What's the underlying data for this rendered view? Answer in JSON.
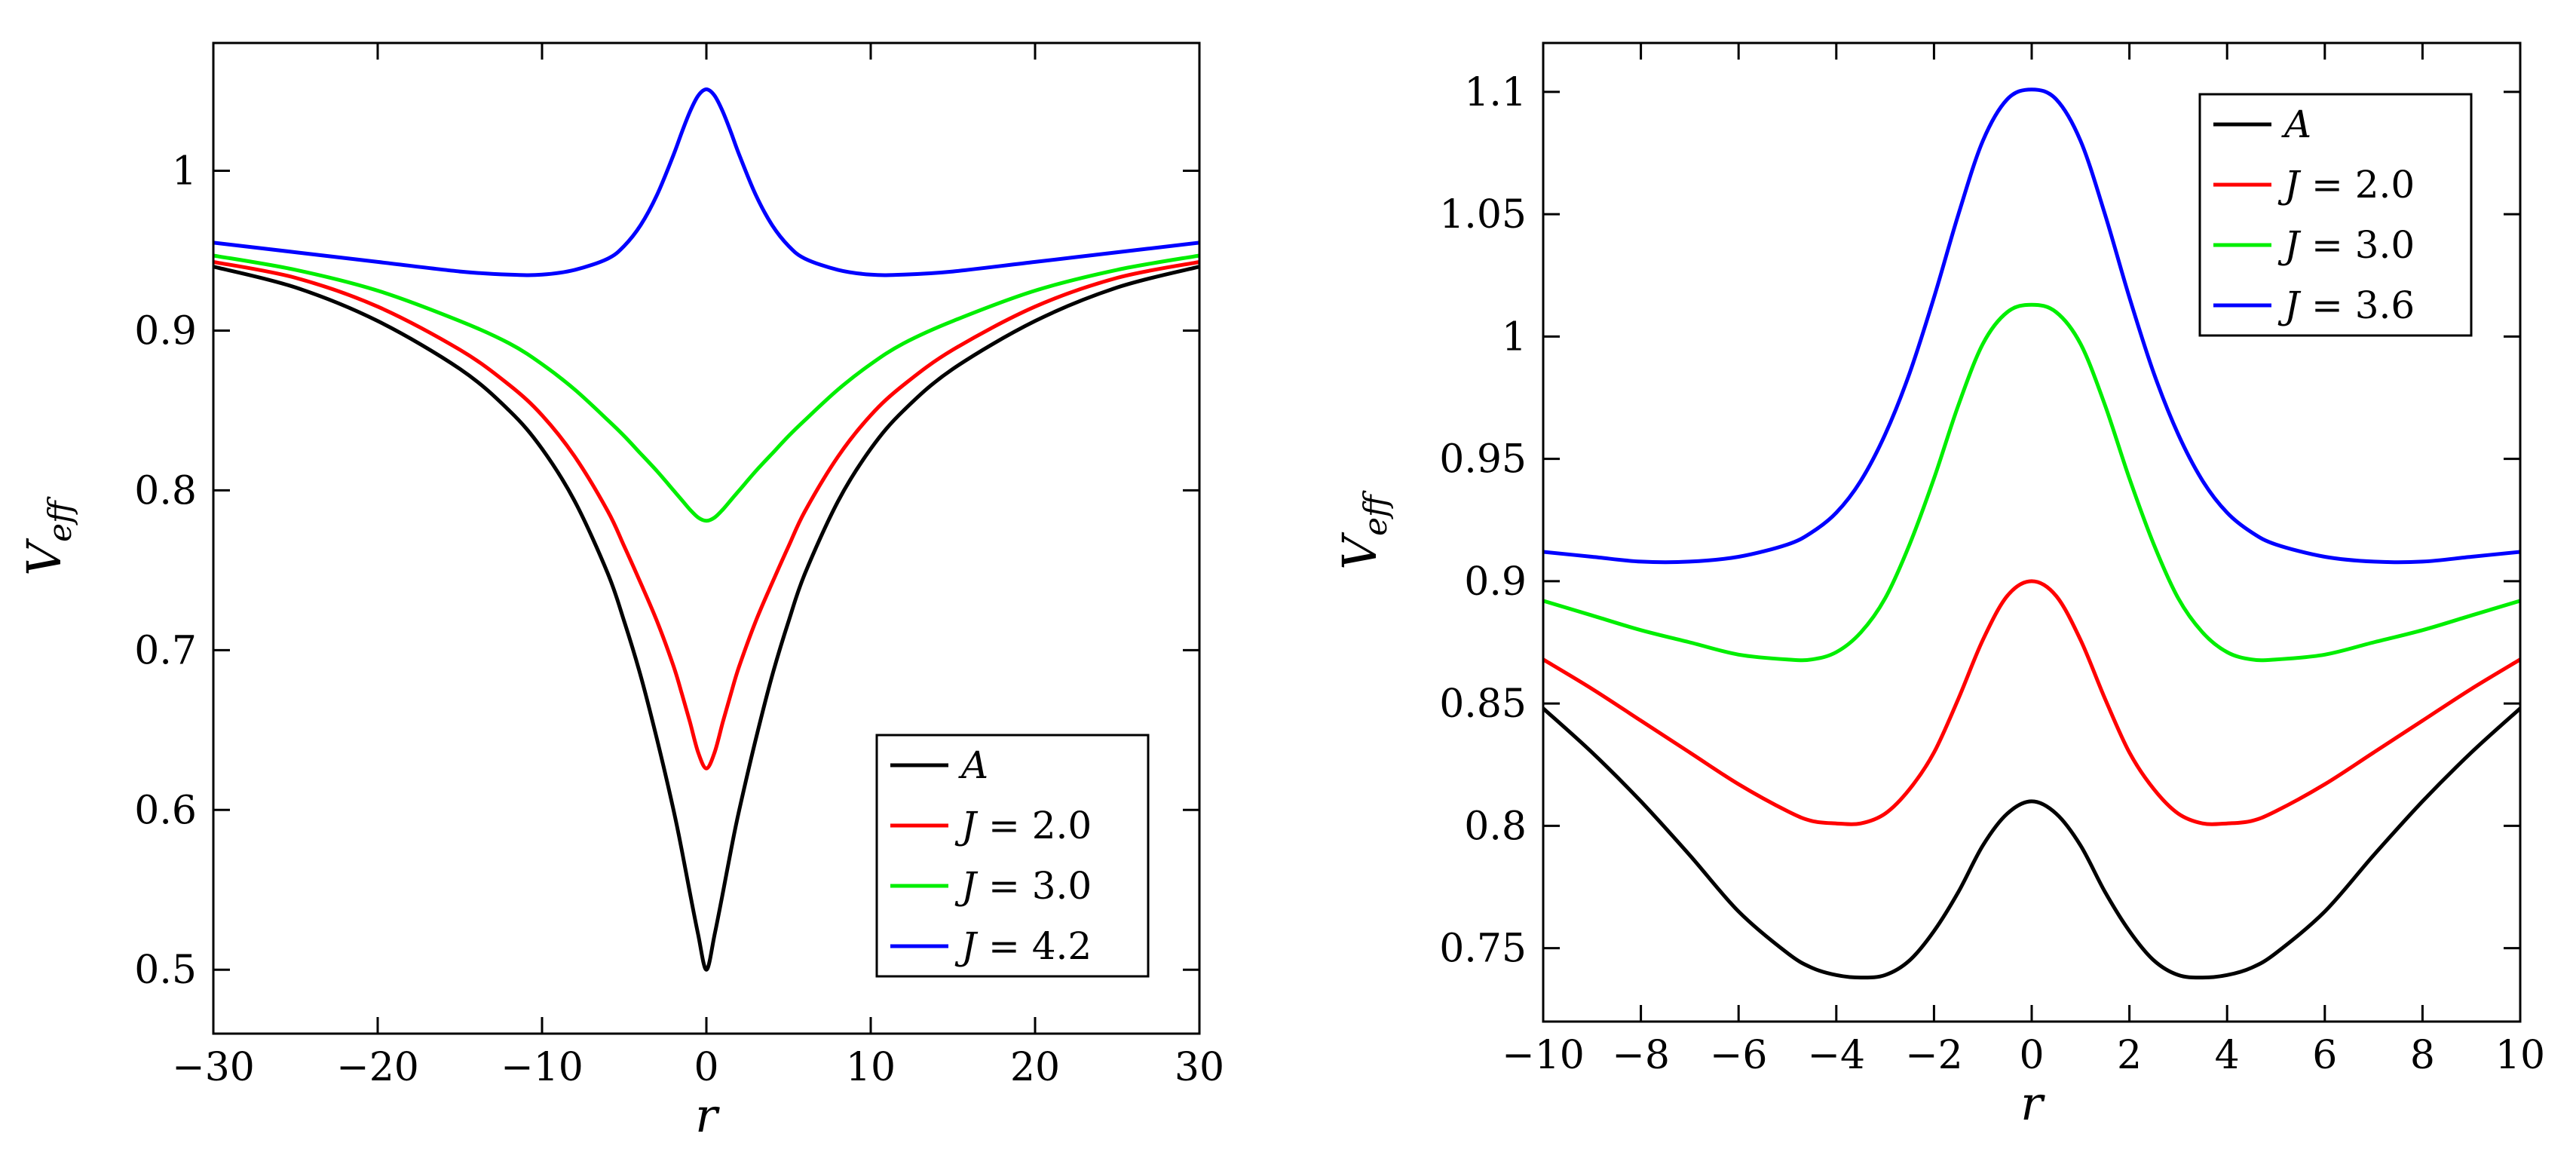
{
  "chart_data": [
    {
      "type": "line",
      "title": "",
      "xlabel": "r",
      "ylabel_main": "V",
      "ylabel_sub": "eff",
      "xlim": [
        -30,
        30
      ],
      "ylim": [
        0.46,
        1.08
      ],
      "xticks": [
        -30,
        -20,
        -10,
        0,
        10,
        20,
        30
      ],
      "xtick_labels": [
        "−30",
        "−20",
        "−10",
        "0",
        "10",
        "20",
        "30"
      ],
      "yticks": [
        0.5,
        0.6,
        0.7,
        0.8,
        0.9,
        1.0
      ],
      "ytick_labels": [
        "0.5",
        "0.6",
        "0.7",
        "0.8",
        "0.9",
        "1"
      ],
      "legend_position": "bottom-right",
      "x": [
        -30,
        -25,
        -20,
        -15,
        -12,
        -10,
        -8,
        -6,
        -5,
        -4,
        -3,
        -2,
        -1.5,
        -1,
        -0.5,
        0,
        0.5,
        1,
        1.5,
        2,
        3,
        4,
        5,
        6,
        8,
        10,
        12,
        15,
        20,
        25,
        30
      ],
      "series": [
        {
          "name_var": "A",
          "name_rest": "",
          "color": "#000000",
          "values": [
            0.94,
            0.927,
            0.906,
            0.876,
            0.85,
            0.826,
            0.793,
            0.748,
            0.718,
            0.684,
            0.644,
            0.6,
            0.575,
            0.548,
            0.522,
            0.5,
            0.522,
            0.548,
            0.575,
            0.6,
            0.644,
            0.684,
            0.718,
            0.748,
            0.793,
            0.826,
            0.85,
            0.876,
            0.906,
            0.927,
            0.94
          ]
        },
        {
          "name_var": "J",
          "name_rest": " = 2.0",
          "color": "#ff0000",
          "values": [
            0.943,
            0.933,
            0.915,
            0.888,
            0.866,
            0.847,
            0.821,
            0.787,
            0.765,
            0.742,
            0.718,
            0.69,
            0.673,
            0.655,
            0.636,
            0.626,
            0.636,
            0.655,
            0.673,
            0.69,
            0.718,
            0.742,
            0.765,
            0.787,
            0.821,
            0.847,
            0.866,
            0.888,
            0.915,
            0.933,
            0.943
          ]
        },
        {
          "name_var": "J",
          "name_rest": " = 3.0",
          "color": "#00ee00",
          "values": [
            0.947,
            0.938,
            0.925,
            0.906,
            0.892,
            0.879,
            0.863,
            0.844,
            0.834,
            0.823,
            0.812,
            0.8,
            0.794,
            0.788,
            0.783,
            0.781,
            0.783,
            0.788,
            0.794,
            0.8,
            0.812,
            0.823,
            0.834,
            0.844,
            0.863,
            0.879,
            0.892,
            0.906,
            0.925,
            0.938,
            0.947
          ]
        },
        {
          "name_var": "J",
          "name_rest": " = 4.2",
          "color": "#0000ff",
          "values": [
            0.955,
            0.949,
            0.943,
            0.937,
            0.935,
            0.935,
            0.938,
            0.945,
            0.953,
            0.966,
            0.985,
            1.01,
            1.024,
            1.037,
            1.047,
            1.051,
            1.047,
            1.037,
            1.024,
            1.01,
            0.985,
            0.966,
            0.953,
            0.945,
            0.938,
            0.935,
            0.935,
            0.937,
            0.943,
            0.949,
            0.955
          ]
        }
      ]
    },
    {
      "type": "line",
      "title": "",
      "xlabel": "r",
      "ylabel_main": "V",
      "ylabel_sub": "eff",
      "xlim": [
        -10,
        10
      ],
      "ylim": [
        0.72,
        1.12
      ],
      "xticks": [
        -10,
        -8,
        -6,
        -4,
        -2,
        0,
        2,
        4,
        6,
        8,
        10
      ],
      "xtick_labels": [
        "−10",
        "−8",
        "−6",
        "−4",
        "−2",
        "0",
        "2",
        "4",
        "6",
        "8",
        "10"
      ],
      "yticks": [
        0.75,
        0.8,
        0.85,
        0.9,
        0.95,
        1.0,
        1.05,
        1.1
      ],
      "ytick_labels": [
        "0.75",
        "0.8",
        "0.85",
        "0.9",
        "0.95",
        "1",
        "1.05",
        "1.1"
      ],
      "legend_position": "top-right",
      "x": [
        -10,
        -9,
        -8,
        -7,
        -6,
        -5,
        -4.5,
        -4,
        -3.5,
        -3,
        -2.5,
        -2,
        -1.5,
        -1,
        -0.5,
        0,
        0.5,
        1,
        1.5,
        2,
        2.5,
        3,
        3.5,
        4,
        4.5,
        5,
        6,
        7,
        8,
        9,
        10
      ],
      "series": [
        {
          "name_var": "A",
          "name_rest": "",
          "color": "#000000",
          "values": [
            0.848,
            0.83,
            0.81,
            0.788,
            0.765,
            0.748,
            0.742,
            0.739,
            0.738,
            0.739,
            0.745,
            0.757,
            0.773,
            0.792,
            0.805,
            0.81,
            0.805,
            0.792,
            0.773,
            0.757,
            0.745,
            0.739,
            0.738,
            0.739,
            0.742,
            0.748,
            0.765,
            0.788,
            0.81,
            0.83,
            0.848
          ]
        },
        {
          "name_var": "J",
          "name_rest": " = 2.0",
          "color": "#ff0000",
          "values": [
            0.868,
            0.856,
            0.843,
            0.83,
            0.817,
            0.806,
            0.802,
            0.801,
            0.801,
            0.805,
            0.815,
            0.83,
            0.852,
            0.876,
            0.894,
            0.9,
            0.894,
            0.876,
            0.852,
            0.83,
            0.815,
            0.805,
            0.801,
            0.801,
            0.802,
            0.806,
            0.817,
            0.83,
            0.843,
            0.856,
            0.868
          ]
        },
        {
          "name_var": "J",
          "name_rest": " = 3.0",
          "color": "#00ee00",
          "values": [
            0.892,
            0.886,
            0.88,
            0.875,
            0.87,
            0.868,
            0.868,
            0.871,
            0.879,
            0.893,
            0.915,
            0.942,
            0.972,
            0.997,
            1.01,
            1.013,
            1.01,
            0.997,
            0.972,
            0.942,
            0.915,
            0.893,
            0.879,
            0.871,
            0.868,
            0.868,
            0.87,
            0.875,
            0.88,
            0.886,
            0.892
          ]
        },
        {
          "name_var": "J",
          "name_rest": " = 3.6",
          "color": "#0000ff",
          "values": [
            0.912,
            0.91,
            0.908,
            0.908,
            0.91,
            0.915,
            0.92,
            0.928,
            0.941,
            0.96,
            0.985,
            1.016,
            1.05,
            1.08,
            1.097,
            1.101,
            1.097,
            1.08,
            1.05,
            1.016,
            0.985,
            0.96,
            0.941,
            0.928,
            0.92,
            0.915,
            0.91,
            0.908,
            0.908,
            0.91,
            0.912
          ]
        }
      ]
    }
  ]
}
